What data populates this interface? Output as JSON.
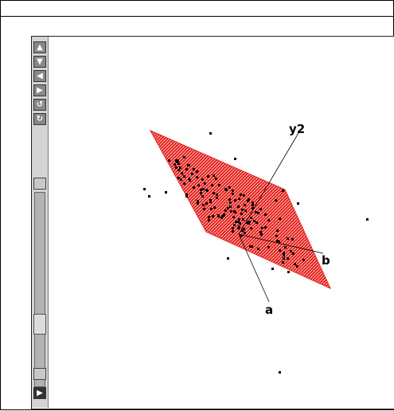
{
  "toolbar": {
    "buttons": [
      {
        "name": "rotate-up-button",
        "glyph": "▲"
      },
      {
        "name": "rotate-down-button",
        "glyph": "▼"
      },
      {
        "name": "rotate-left-button",
        "glyph": "◀"
      },
      {
        "name": "rotate-right-button",
        "glyph": "▶"
      },
      {
        "name": "spin-ccw-button",
        "glyph": "↺"
      },
      {
        "name": "spin-cw-button",
        "glyph": "↻"
      }
    ],
    "slider_value": 0.9,
    "play_glyph": "▶"
  },
  "plot": {
    "axis_labels": {
      "y2": "y2",
      "a": "a",
      "b": "b"
    },
    "plane_color": "#e8211c",
    "point_color": "#000000"
  }
}
